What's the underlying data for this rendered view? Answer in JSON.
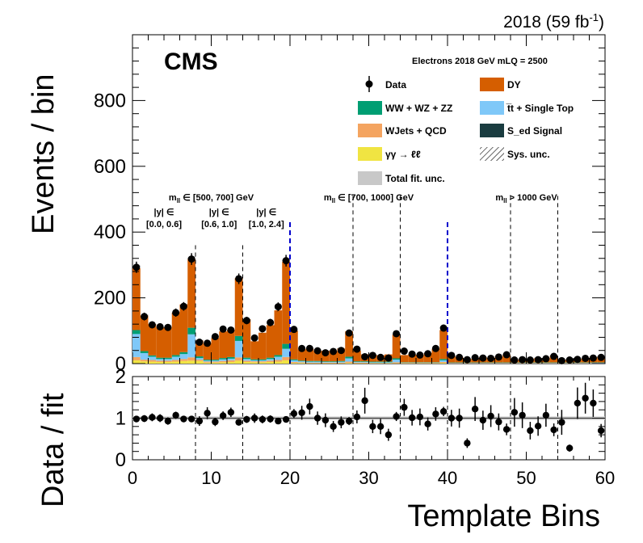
{
  "chart_data": {
    "type": "bar",
    "stacked": true,
    "lumi_label": "2018 (59 fb",
    "lumi_exp": "-1",
    "lumi_close": ")",
    "cms_label": "CMS",
    "channel_label": "Electrons 2018  GeV mLQ = 2500",
    "xlabel": "Template Bins",
    "ylabel_main": "Events / bin",
    "ylabel_ratio": "Data / fit",
    "xlim": [
      0,
      60
    ],
    "ylim": [
      0,
      1000
    ],
    "ratio_ylim": [
      0,
      2
    ],
    "x_ticks": [
      "0",
      "10",
      "20",
      "30",
      "40",
      "50",
      "60"
    ],
    "y_ticks": [
      "0",
      "200",
      "400",
      "600",
      "800"
    ],
    "ratio_ticks": [
      "0",
      "1",
      "2"
    ],
    "legend": [
      {
        "label": "Data",
        "kind": "data",
        "color": "#000000"
      },
      {
        "label": "DY",
        "kind": "fill",
        "color": "#d55e00"
      },
      {
        "label": "WW + WZ + ZZ",
        "kind": "fill",
        "color": "#009e73"
      },
      {
        "label": "t̅t + Single Top",
        "kind": "fill",
        "color": "#7fc8f8"
      },
      {
        "label": "WJets + QCD",
        "kind": "fill",
        "color": "#f4a460"
      },
      {
        "label": "S_ed Signal",
        "kind": "fill",
        "color": "#1a3c40"
      },
      {
        "label": "γγ → ℓℓ",
        "kind": "fill",
        "color": "#f0e442"
      },
      {
        "label": "Sys. unc.",
        "kind": "hatch",
        "color": "#000000"
      },
      {
        "label": "Total fit. unc.",
        "kind": "fill",
        "color": "#c8c8c8"
      }
    ],
    "mass_regions": [
      {
        "label": "m",
        "sub": "ll",
        "rest": " ∈ [500, 700] GeV",
        "center": 10
      },
      {
        "label": "m",
        "sub": "ll",
        "rest": " ∈ [700, 1000] GeV",
        "center": 30
      },
      {
        "label": "m",
        "sub": "ll",
        "rest": " > 1000 GeV",
        "center": 50
      }
    ],
    "y_regions": [
      {
        "line1": "|y| ∈",
        "line2": "[0.0, 0.6]",
        "center": 4
      },
      {
        "line1": "|y| ∈",
        "line2": "[0.6, 1.0]",
        "center": 11
      },
      {
        "line1": "|y| ∈",
        "line2": "[1.0, 2.4]",
        "center": 17
      }
    ],
    "mass_boundaries": [
      20,
      40
    ],
    "rapidity_boundaries": [
      8,
      14,
      28,
      34,
      48,
      54
    ],
    "series": [
      {
        "name": "γγ → ℓℓ",
        "color": "#f0e442",
        "values": [
          10,
          7,
          6,
          5,
          5,
          6,
          8,
          9,
          8,
          3,
          3,
          4,
          5,
          9,
          5,
          4,
          4,
          5,
          6,
          10,
          2,
          2,
          1,
          1,
          1,
          1,
          1,
          2,
          1,
          1,
          1,
          1,
          1,
          1,
          1,
          1,
          1,
          1,
          1,
          2,
          0.5,
          0.5,
          0.5,
          0.5,
          0.5,
          0.5,
          0.5,
          0.5,
          0.5,
          0.5,
          0.5,
          0.5,
          0.5,
          0.5,
          0.5,
          0.5,
          0.5,
          0.5,
          0.5,
          0.5
        ]
      },
      {
        "name": "WJets + QCD",
        "color": "#f4a460",
        "values": [
          10,
          5,
          5,
          4,
          4,
          5,
          6,
          10,
          4,
          3,
          3,
          4,
          5,
          10,
          4,
          3,
          3,
          4,
          5,
          10,
          3,
          2,
          2,
          2,
          2,
          2,
          2,
          4,
          2,
          2,
          1,
          1,
          1,
          3,
          1,
          1,
          1,
          1,
          1,
          3,
          1,
          1,
          1,
          1,
          1,
          1,
          1,
          1,
          1,
          1,
          1,
          1,
          1,
          1,
          1,
          1,
          1,
          1,
          1,
          1
        ]
      },
      {
        "name": "t̅t + Single Top",
        "color": "#7fc8f8",
        "values": [
          70,
          20,
          10,
          5,
          5,
          10,
          15,
          70,
          5,
          3,
          3,
          5,
          5,
          50,
          5,
          3,
          3,
          5,
          10,
          25,
          5,
          3,
          3,
          3,
          2,
          2,
          3,
          10,
          2,
          2,
          2,
          2,
          2,
          8,
          1,
          1,
          1,
          1,
          1,
          5,
          1,
          1,
          1,
          1,
          1,
          1,
          1,
          1,
          1,
          1,
          1,
          1,
          1,
          1,
          1,
          1,
          1,
          1,
          1,
          1
        ]
      },
      {
        "name": "WW + WZ + ZZ",
        "color": "#009e73",
        "values": [
          12,
          6,
          4,
          4,
          4,
          5,
          6,
          20,
          5,
          3,
          3,
          4,
          5,
          15,
          4,
          3,
          3,
          4,
          5,
          15,
          3,
          2,
          2,
          2,
          2,
          2,
          2,
          5,
          2,
          2,
          2,
          2,
          2,
          4,
          1,
          1,
          1,
          1,
          1,
          4,
          1,
          1,
          1,
          1,
          1,
          1,
          1,
          1,
          1,
          1,
          1,
          1,
          1,
          1,
          1,
          1,
          1,
          1,
          1,
          1
        ]
      },
      {
        "name": "DY",
        "color": "#d55e00",
        "values": [
          188,
          108,
          95,
          92,
          92,
          129,
          145,
          209,
          48,
          49,
          66,
          81,
          83,
          176,
          117,
          55,
          81,
          99,
          136,
          250,
          87,
          34,
          37,
          30,
          32,
          31,
          38,
          77,
          33,
          21,
          21,
          19,
          22,
          72,
          22,
          24,
          22,
          28,
          41,
          88,
          20,
          16,
          10,
          11,
          16,
          13,
          17,
          23,
          9,
          9,
          10,
          13,
          13,
          21,
          8,
          8,
          10,
          12,
          15,
          17
        ]
      }
    ],
    "data": {
      "x": [
        0.5,
        1.5,
        2.5,
        3.5,
        4.5,
        5.5,
        6.5,
        7.5,
        8.5,
        9.5,
        10.5,
        11.5,
        12.5,
        13.5,
        14.5,
        15.5,
        16.5,
        17.5,
        18.5,
        19.5,
        20.5,
        21.5,
        22.5,
        23.5,
        24.5,
        25.5,
        26.5,
        27.5,
        28.5,
        29.5,
        30.5,
        31.5,
        32.5,
        33.5,
        34.5,
        35.5,
        36.5,
        37.5,
        38.5,
        39.5,
        40.5,
        41.5,
        42.5,
        43.5,
        44.5,
        45.5,
        46.5,
        47.5,
        48.5,
        49.5,
        50.5,
        51.5,
        52.5,
        53.5,
        54.5,
        55.5,
        56.5,
        57.5,
        58.5,
        59.5
      ],
      "y": [
        293,
        143,
        118,
        112,
        110,
        155,
        174,
        318,
        65,
        62,
        82,
        105,
        102,
        258,
        131,
        78,
        106,
        125,
        173,
        313,
        104,
        46,
        46,
        39,
        33,
        37,
        40,
        93,
        44,
        21,
        25,
        19,
        17,
        91,
        38,
        29,
        26,
        30,
        46,
        108,
        25,
        19,
        12,
        18,
        17,
        16,
        20,
        27,
        11,
        12,
        11,
        12,
        15,
        22,
        9,
        11,
        13,
        16,
        17,
        19
      ],
      "ratio": [
        0.98,
        0.99,
        1.02,
        1.0,
        0.93,
        1.07,
        0.98,
        0.98,
        0.93,
        1.12,
        0.91,
        1.06,
        1.14,
        0.9,
        0.97,
        1.0,
        0.97,
        0.98,
        0.93,
        0.97,
        1.11,
        1.13,
        1.28,
        1.0,
        0.95,
        0.8,
        0.9,
        0.93,
        1.03,
        1.42,
        0.8,
        0.8,
        0.6,
        1.04,
        1.26,
        1.01,
        1.03,
        0.86,
        1.1,
        1.16,
        1.0,
        1.0,
        0.4,
        1.22,
        0.95,
        1.05,
        0.91,
        0.73,
        1.14,
        1.07,
        0.7,
        0.81,
        1.07,
        0.72,
        0.9,
        0.28,
        1.36,
        1.48,
        1.36,
        0.7
      ]
    }
  }
}
